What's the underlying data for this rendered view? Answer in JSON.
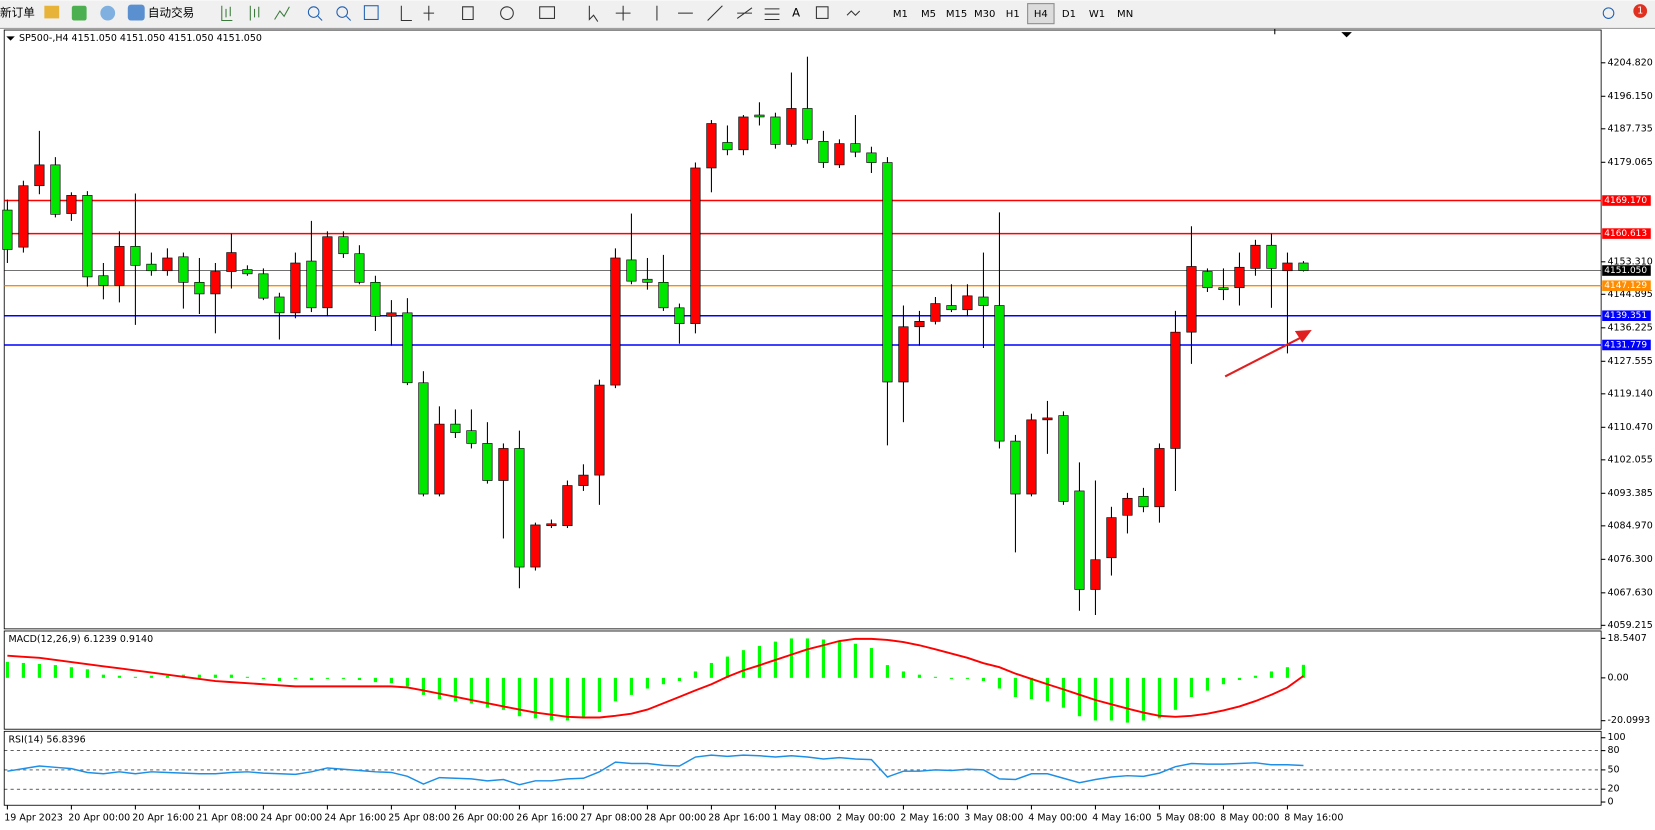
{
  "toolbar": {
    "new_order": "新订单",
    "auto_trade": "自动交易",
    "timeframes": [
      "M1",
      "M5",
      "M15",
      "M30",
      "H1",
      "H4",
      "D1",
      "W1",
      "MN"
    ],
    "notifications": "1"
  },
  "chart_data": [
    {
      "type": "candlestick",
      "title": "SP500-,H4  4151.050 4151.050 4151.050 4151.050",
      "up_color": "#ff0000",
      "down_color": "#00e600",
      "categories": [
        "19 Apr 2023",
        null,
        null,
        null,
        "20 Apr 00:00",
        null,
        null,
        null,
        "20 Apr 16:00",
        null,
        null,
        null,
        "21 Apr 08:00",
        null,
        null,
        null,
        "24 Apr 00:00",
        null,
        null,
        null,
        "24 Apr 16:00",
        null,
        null,
        null,
        "25 Apr 08:00",
        null,
        null,
        null,
        "26 Apr 00:00",
        null,
        null,
        null,
        "26 Apr 16:00",
        null,
        null,
        null,
        "27 Apr 08:00",
        null,
        null,
        null,
        "28 Apr 00:00",
        null,
        null,
        null,
        "28 Apr 16:00",
        null,
        null,
        null,
        "1 May 08:00",
        null,
        null,
        null,
        "2 May 00:00",
        null,
        null,
        null,
        "2 May 16:00",
        null,
        null,
        null,
        "3 May 08:00",
        null,
        null,
        null,
        "4 May 00:00",
        null,
        null,
        null,
        "4 May 16:00",
        null,
        null,
        null,
        "5 May 08:00",
        null,
        null,
        null,
        "8 May 00:00",
        null,
        null,
        null,
        "8 May 16:00",
        null
      ],
      "open": [
        4166.7,
        4157.1,
        4173.0,
        4178.4,
        4165.8,
        4170.5,
        4149.7,
        4147.2,
        4157.3,
        4152.7,
        4151.0,
        4154.6,
        4148.0,
        4145.0,
        4150.8,
        4151.3,
        4150.2,
        4144.2,
        4140.1,
        4153.5,
        4141.4,
        4159.8,
        4155.4,
        4148.0,
        4139.2,
        4140.1,
        4122.0,
        4093.2,
        4111.3,
        4109.6,
        4106.3,
        4096.7,
        4105.0,
        4074.3,
        4085.0,
        4085.0,
        4095.4,
        4098.1,
        4121.4,
        4153.8,
        4148.8,
        4148.0,
        4141.4,
        4137.3,
        4177.6,
        4184.2,
        4182.3,
        4191.3,
        4190.8,
        4183.7,
        4193.0,
        4184.5,
        4178.4,
        4183.9,
        4181.5,
        4179.0,
        4122.2,
        4136.5,
        4137.9,
        4142.0,
        4140.9,
        4144.2,
        4142.0,
        4106.9,
        4093.2,
        4112.4,
        4113.5,
        4094.0,
        4068.5,
        4076.7,
        4087.7,
        4092.6,
        4089.9,
        4105.0,
        4135.1,
        4150.8,
        4146.6,
        4146.6,
        4151.6,
        4157.6,
        4151.0,
        4153.0
      ],
      "high": [
        4169.4,
        4174.3,
        4187.2,
        4180.4,
        4171.3,
        4171.6,
        4153.0,
        4161.2,
        4171.0,
        4155.7,
        4156.8,
        4155.7,
        4154.3,
        4153.0,
        4160.6,
        4152.4,
        4151.6,
        4145.3,
        4155.7,
        4163.9,
        4161.2,
        4161.2,
        4157.6,
        4149.7,
        4143.4,
        4143.9,
        4125.0,
        4115.9,
        4115.1,
        4115.1,
        4111.8,
        4106.3,
        4109.6,
        4085.8,
        4086.6,
        4096.7,
        4100.9,
        4122.8,
        4156.8,
        4165.8,
        4154.3,
        4155.1,
        4142.5,
        4179.0,
        4190.0,
        4188.6,
        4191.3,
        4194.6,
        4191.9,
        4202.3,
        4206.4,
        4187.2,
        4185.0,
        4191.3,
        4183.1,
        4180.4,
        4142.0,
        4140.6,
        4144.2,
        4147.5,
        4147.5,
        4155.7,
        4166.1,
        4108.5,
        4114.0,
        4117.3,
        4114.6,
        4101.4,
        4096.7,
        4089.9,
        4093.5,
        4094.8,
        4106.3,
        4140.6,
        4162.5,
        4151.6,
        4151.6,
        4155.7,
        4159.0,
        4160.6,
        4155.7,
        4153.5
      ],
      "low": [
        4153.0,
        4155.7,
        4170.8,
        4164.8,
        4163.9,
        4146.9,
        4143.6,
        4142.8,
        4137.0,
        4149.7,
        4149.7,
        4141.2,
        4139.8,
        4134.8,
        4146.4,
        4149.7,
        4143.4,
        4133.2,
        4138.7,
        4140.3,
        4139.2,
        4154.3,
        4147.5,
        4135.4,
        4131.6,
        4121.4,
        4092.6,
        4092.6,
        4107.7,
        4105.0,
        4095.9,
        4081.7,
        4068.8,
        4073.4,
        4084.4,
        4084.4,
        4094.0,
        4090.4,
        4120.6,
        4147.5,
        4146.1,
        4140.6,
        4132.1,
        4134.8,
        4171.3,
        4180.9,
        4180.9,
        4188.6,
        4182.6,
        4183.1,
        4183.9,
        4177.6,
        4177.6,
        4180.4,
        4176.3,
        4105.8,
        4111.8,
        4131.6,
        4137.1,
        4140.3,
        4139.2,
        4131.0,
        4105.0,
        4078.1,
        4092.6,
        4103.6,
        4090.4,
        4063.0,
        4061.9,
        4072.1,
        4083.0,
        4088.5,
        4085.8,
        4094.0,
        4126.9,
        4145.5,
        4143.4,
        4142.0,
        4149.7,
        4141.4,
        4129.6,
        4150.8
      ],
      "close": [
        4156.5,
        4173.0,
        4178.4,
        4165.6,
        4170.5,
        4149.4,
        4147.2,
        4157.3,
        4152.4,
        4151.0,
        4154.3,
        4148.0,
        4145.0,
        4150.8,
        4155.7,
        4150.2,
        4143.9,
        4140.1,
        4153.0,
        4141.4,
        4159.8,
        4155.4,
        4148.0,
        4139.2,
        4140.1,
        4122.0,
        4093.2,
        4111.3,
        4109.1,
        4106.3,
        4096.7,
        4105.0,
        4074.3,
        4085.2,
        4085.5,
        4095.4,
        4098.1,
        4121.4,
        4154.3,
        4148.3,
        4148.0,
        4141.4,
        4137.3,
        4177.6,
        4189.1,
        4182.3,
        4190.8,
        4190.8,
        4183.7,
        4193.0,
        4185.0,
        4179.0,
        4183.9,
        4181.7,
        4179.0,
        4122.2,
        4136.5,
        4137.9,
        4142.5,
        4140.9,
        4144.5,
        4142.0,
        4106.9,
        4093.2,
        4112.4,
        4112.9,
        4091.3,
        4068.5,
        4076.2,
        4087.1,
        4092.1,
        4089.9,
        4105.0,
        4135.1,
        4152.1,
        4146.6,
        4146.1,
        4151.9,
        4157.6,
        4151.6,
        4153.0,
        4151.05
      ],
      "ylim": [
        4058.3,
        4213.3
      ],
      "yticks": [
        {
          "value": 4204.82,
          "label": "4204.820"
        },
        {
          "value": 4196.15,
          "label": "4196.150"
        },
        4187.735,
        4179.065,
        {
          "value": 4153.31,
          "label": "4153.310"
        },
        4144.895,
        4136.225,
        4127.555,
        {
          "value": 4119.14,
          "label": "4119.140"
        },
        {
          "value": 4110.47,
          "label": "4110.470"
        },
        4102.055,
        4093.385,
        {
          "value": 4084.97,
          "label": "4084.970"
        },
        {
          "value": 4076.3,
          "label": "4076.300"
        },
        {
          "value": 4067.63,
          "label": "4067.630"
        },
        4059.215
      ],
      "levels": [
        {
          "value": 4169.17,
          "label": "4169.170",
          "color": "#ff0000"
        },
        {
          "value": 4160.613,
          "label": "4160.613",
          "color": "#ff0000"
        },
        {
          "value": 4147.129,
          "label": "4147.129",
          "color": "#ff8c00"
        },
        {
          "value": 4139.351,
          "label": "4139.351",
          "color": "#0000ff"
        },
        {
          "value": 4131.779,
          "label": "4131.779",
          "color": "#0000ff"
        }
      ],
      "current": {
        "value": 4151.05,
        "label": "4151.050",
        "color": "#000000"
      }
    },
    {
      "type": "macd",
      "title": "MACD(12,26,9) 6.1239 0.9140",
      "histogram": {
        "color": "#00ff00",
        "values": [
          7.5,
          7,
          6.5,
          6,
          5,
          4,
          1.5,
          1,
          0.5,
          1,
          1,
          1.5,
          1.5,
          1.5,
          1.5,
          0.5,
          -0.5,
          -1.5,
          -0.5,
          -1,
          -0.5,
          -0.5,
          -1,
          -2,
          -2.5,
          -4,
          -8,
          -10,
          -11,
          -12,
          -14,
          -15,
          -18,
          -19,
          -20,
          -20,
          -19,
          -16,
          -11,
          -8,
          -5,
          -3,
          -1.5,
          3,
          7,
          10,
          13,
          15,
          17,
          18.5,
          18.5,
          18,
          17,
          16,
          14,
          6,
          3,
          1.5,
          0.5,
          -0.5,
          -0.5,
          -1.5,
          -5,
          -9,
          -10,
          -11,
          -14,
          -18,
          -20,
          -20,
          -21,
          -20,
          -19,
          -15,
          -9,
          -6,
          -3,
          -1,
          1,
          3,
          5,
          6.1239
        ]
      },
      "signal": {
        "color": "#ff0000",
        "values": [
          10.4,
          9.9,
          9.4,
          8.4,
          7.4,
          6.4,
          5.4,
          4.5,
          3.5,
          2.5,
          1.5,
          0.5,
          -0.5,
          -1.5,
          -2.0,
          -2.5,
          -3.0,
          -3.5,
          -4.0,
          -4.0,
          -4.0,
          -4.0,
          -4.0,
          -4.0,
          -4.0,
          -4.5,
          -5.9,
          -7.4,
          -8.9,
          -10.4,
          -11.9,
          -13.4,
          -14.9,
          -16.3,
          -17.3,
          -18.3,
          -18.6,
          -18.6,
          -17.8,
          -16.8,
          -14.9,
          -11.9,
          -8.9,
          -5.9,
          -3.0,
          0.5,
          3.5,
          5.9,
          8.4,
          10.9,
          13.4,
          15.3,
          17.3,
          18.3,
          18.3,
          17.8,
          16.8,
          15.3,
          13.4,
          11.4,
          9.4,
          6.9,
          5.0,
          2.0,
          -0.5,
          -3.0,
          -5.4,
          -7.9,
          -10.4,
          -12.4,
          -14.4,
          -16.3,
          -17.8,
          -18.3,
          -17.8,
          -16.8,
          -15.3,
          -13.4,
          -10.9,
          -7.9,
          -4.5,
          0.914
        ]
      },
      "ylim": [
        -24.1,
        22.0
      ],
      "yticks": [
        18.5407,
        {
          "value": 0,
          "label": "0.00"
        },
        -20.0993
      ]
    },
    {
      "type": "line",
      "title": "RSI(14) 56.8396",
      "color": "#1e8fe6",
      "values": [
        48,
        52,
        56,
        54,
        52,
        46,
        44,
        47,
        44,
        47,
        46,
        45,
        44,
        44,
        46,
        47,
        45,
        44,
        43,
        47,
        53,
        51,
        49,
        47,
        46,
        40,
        28,
        38,
        37,
        36,
        33,
        35,
        27,
        33,
        33,
        36,
        37,
        47,
        62,
        60,
        60,
        57,
        56,
        70,
        73,
        71,
        73,
        72,
        70,
        72,
        70,
        67,
        69,
        67,
        66,
        39,
        48,
        48,
        50,
        49,
        51,
        50,
        36,
        35,
        44,
        44,
        37,
        30,
        35,
        39,
        41,
        40,
        45,
        55,
        60,
        59,
        59,
        60,
        61,
        58,
        58,
        56.8396
      ],
      "ylim": [
        -5,
        110
      ],
      "yticks": [
        100,
        80,
        50,
        20,
        0
      ]
    }
  ]
}
